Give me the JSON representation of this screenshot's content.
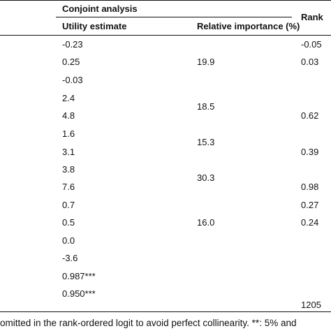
{
  "table": {
    "group_header": "Conjoint analysis",
    "right_header_partial": "Rank",
    "columns": {
      "utility": "Utility estimate",
      "importance": "Relative importance (%)"
    },
    "utility_values": [
      "-0.23",
      "0.25",
      "-0.03",
      "2.4",
      "4.8",
      "1.6",
      "3.1",
      "3.8",
      "7.6",
      "0.7",
      "0.5",
      "0.0",
      "-3.6",
      "0.987***",
      "0.950***"
    ],
    "importance_values": [
      "19.9",
      "18.5",
      "15.3",
      "30.3",
      "16.0"
    ],
    "rank_values": [
      "-0.05",
      "0.03",
      "0.62",
      "0.39",
      "0.98",
      "0.27",
      "0.24"
    ],
    "bottom_value": "1205"
  },
  "footnote": "omitted in the rank-ordered logit to avoid perfect collinearity. **: 5% and"
}
